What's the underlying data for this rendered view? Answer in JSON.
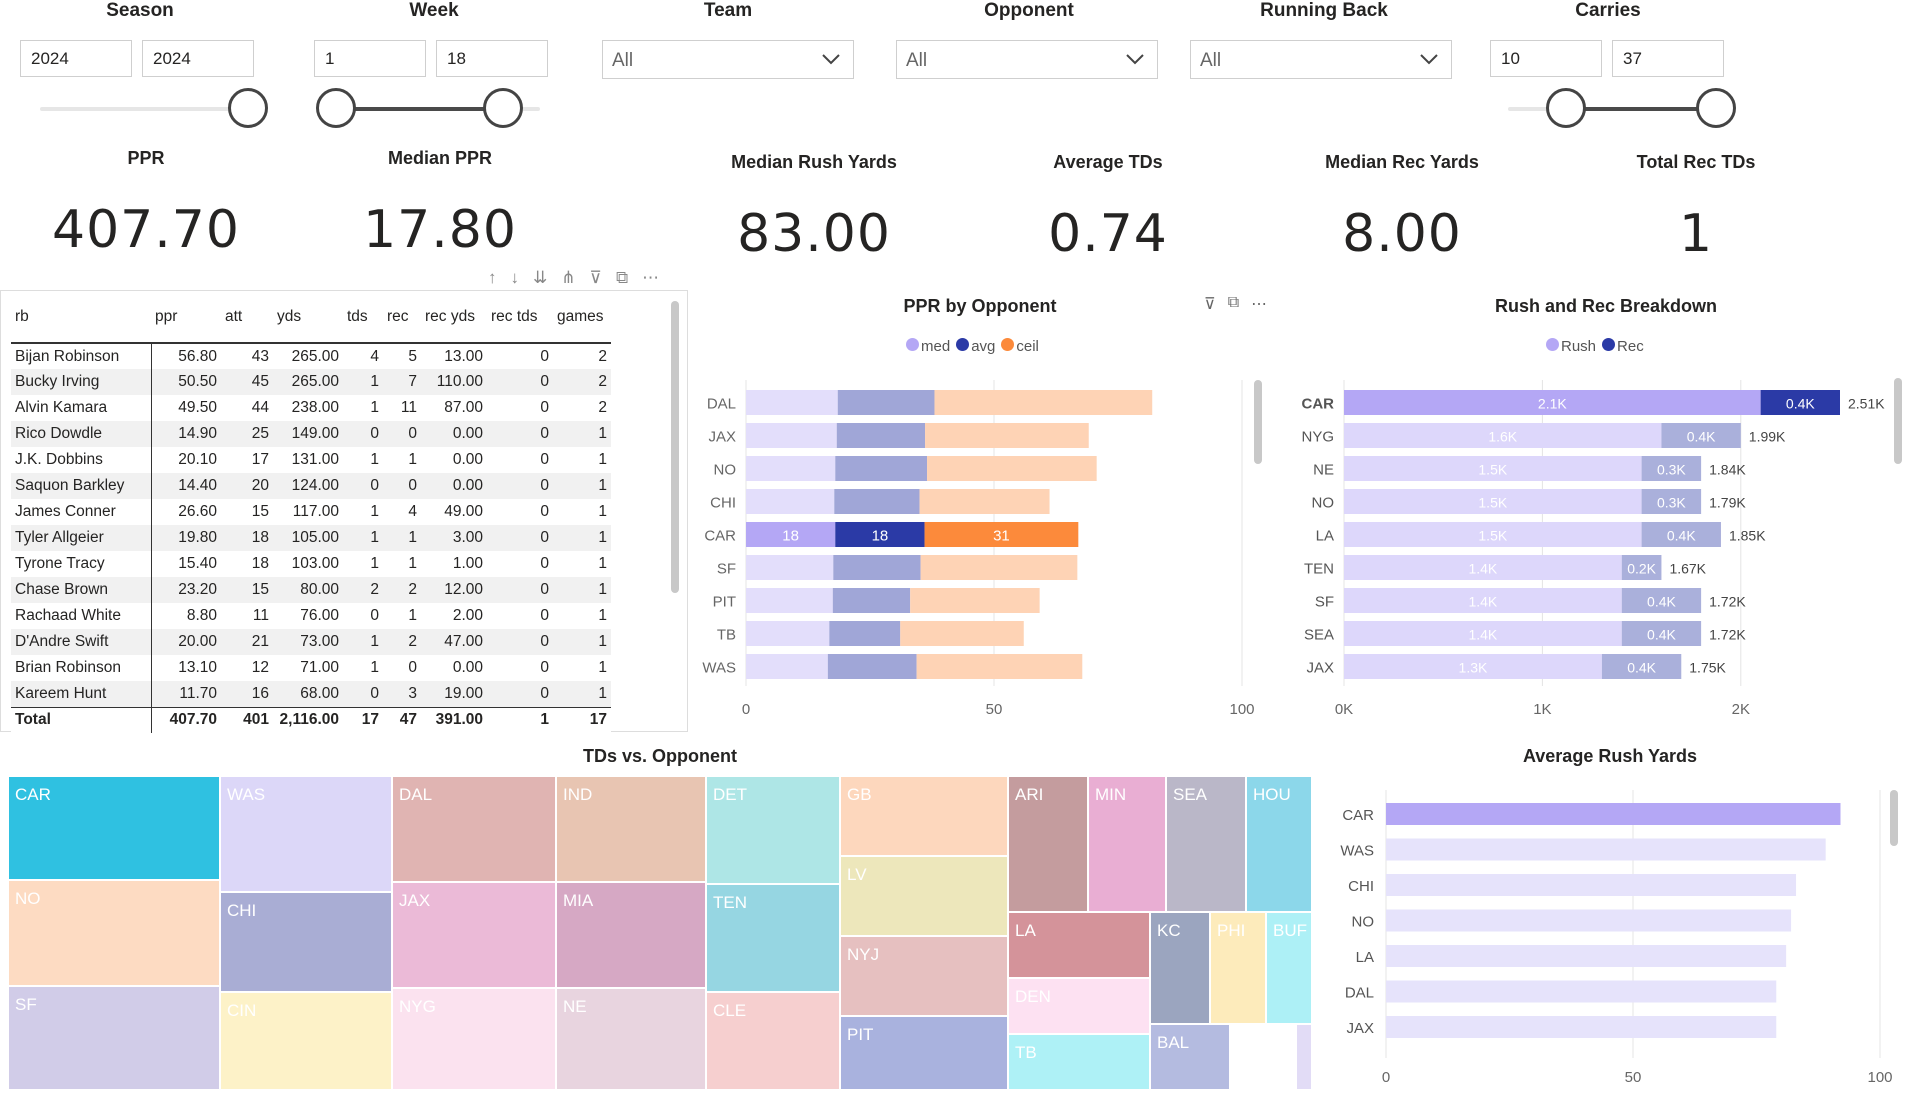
{
  "slicers": {
    "season": {
      "label": "Season",
      "min": "2024",
      "max": "2024"
    },
    "week": {
      "label": "Week",
      "min": "1",
      "max": "18"
    },
    "team": {
      "label": "Team",
      "value": "All"
    },
    "opponent": {
      "label": "Opponent",
      "value": "All"
    },
    "running_back": {
      "label": "Running Back",
      "value": "All"
    },
    "carries": {
      "label": "Carries",
      "min": "10",
      "max": "37"
    }
  },
  "kpis": [
    {
      "title": "PPR",
      "value": "407.70"
    },
    {
      "title": "Median PPR",
      "value": "17.80"
    },
    {
      "title": "Median Rush Yards",
      "value": "83.00"
    },
    {
      "title": "Average TDs",
      "value": "0.74"
    },
    {
      "title": "Median Rec Yards",
      "value": "8.00"
    },
    {
      "title": "Total Rec TDs",
      "value": "1"
    }
  ],
  "table": {
    "columns": [
      "rb",
      "ppr",
      "att",
      "yds",
      "tds",
      "rec",
      "rec yds",
      "rec tds",
      "games"
    ],
    "rows": [
      [
        "Bijan Robinson",
        "56.80",
        "43",
        "265.00",
        "4",
        "5",
        "13.00",
        "0",
        "2"
      ],
      [
        "Bucky Irving",
        "50.50",
        "45",
        "265.00",
        "1",
        "7",
        "110.00",
        "0",
        "2"
      ],
      [
        "Alvin Kamara",
        "49.50",
        "44",
        "238.00",
        "1",
        "11",
        "87.00",
        "0",
        "2"
      ],
      [
        "Rico Dowdle",
        "14.90",
        "25",
        "149.00",
        "0",
        "0",
        "0.00",
        "0",
        "1"
      ],
      [
        "J.K. Dobbins",
        "20.10",
        "17",
        "131.00",
        "1",
        "1",
        "0.00",
        "0",
        "1"
      ],
      [
        "Saquon Barkley",
        "14.40",
        "20",
        "124.00",
        "0",
        "0",
        "0.00",
        "0",
        "1"
      ],
      [
        "James Conner",
        "26.60",
        "15",
        "117.00",
        "1",
        "4",
        "49.00",
        "0",
        "1"
      ],
      [
        "Tyler Allgeier",
        "19.80",
        "18",
        "105.00",
        "1",
        "1",
        "3.00",
        "0",
        "1"
      ],
      [
        "Tyrone Tracy",
        "15.40",
        "18",
        "103.00",
        "1",
        "1",
        "1.00",
        "0",
        "1"
      ],
      [
        "Chase Brown",
        "23.20",
        "15",
        "80.00",
        "2",
        "2",
        "12.00",
        "0",
        "1"
      ],
      [
        "Rachaad White",
        "8.80",
        "11",
        "76.00",
        "0",
        "1",
        "2.00",
        "0",
        "1"
      ],
      [
        "D'Andre Swift",
        "20.00",
        "21",
        "73.00",
        "1",
        "2",
        "47.00",
        "0",
        "1"
      ],
      [
        "Brian Robinson",
        "13.10",
        "12",
        "71.00",
        "1",
        "0",
        "0.00",
        "0",
        "1"
      ],
      [
        "Kareem Hunt",
        "11.70",
        "16",
        "68.00",
        "0",
        "3",
        "19.00",
        "0",
        "1"
      ]
    ],
    "total": [
      "Total",
      "407.70",
      "401",
      "2,116.00",
      "17",
      "47",
      "391.00",
      "1",
      "17"
    ]
  },
  "chart_data": [
    {
      "type": "bar",
      "title": "PPR by Opponent",
      "categories": [
        "DAL",
        "JAX",
        "NO",
        "CHI",
        "CAR",
        "SF",
        "PIT",
        "TB",
        "WAS"
      ],
      "series": [
        {
          "name": "med",
          "values": [
            18.5,
            18.3,
            18.0,
            17.8,
            18,
            17.6,
            17.5,
            16.8,
            16.5
          ],
          "color": "#b4a7f5"
        },
        {
          "name": "avg",
          "values": [
            19.5,
            17.8,
            18.5,
            17.2,
            18,
            17.6,
            15.6,
            14.3,
            17.9
          ],
          "color": "#2b3aa6"
        },
        {
          "name": "ceil",
          "values": [
            43.9,
            33.0,
            34.2,
            26.2,
            31,
            31.6,
            26.1,
            24.9,
            33.4
          ],
          "color": "#fc8a3b"
        }
      ],
      "labels_for": "CAR",
      "highlight_labels": [
        "18",
        "18",
        "31"
      ],
      "xlim": [
        0,
        100
      ],
      "xticks": [
        "0",
        "50",
        "100"
      ]
    },
    {
      "type": "bar",
      "title": "Rush and Rec Breakdown",
      "categories": [
        "CAR",
        "NYG",
        "NE",
        "NO",
        "LA",
        "TEN",
        "SF",
        "SEA",
        "JAX"
      ],
      "series": [
        {
          "name": "Rush",
          "values": [
            2.1,
            1.6,
            1.5,
            1.5,
            1.5,
            1.4,
            1.4,
            1.4,
            1.3
          ],
          "labels": [
            "2.1K",
            "1.6K",
            "1.5K",
            "1.5K",
            "1.5K",
            "1.4K",
            "1.4K",
            "1.4K",
            "1.3K"
          ],
          "color": "#b4a7f5"
        },
        {
          "name": "Rec",
          "values": [
            0.4,
            0.4,
            0.3,
            0.3,
            0.4,
            0.2,
            0.4,
            0.4,
            0.4
          ],
          "labels": [
            "0.4K",
            "0.4K",
            "0.3K",
            "0.3K",
            "0.4K",
            "0.2K",
            "0.4K",
            "0.4K",
            "0.4K"
          ],
          "color": "#2b3aa6"
        }
      ],
      "totals": [
        "2.51K",
        "1.99K",
        "1.84K",
        "1.79K",
        "1.85K",
        "1.67K",
        "1.72K",
        "1.72K",
        "1.75K"
      ],
      "xlim": [
        0,
        2.5
      ],
      "xticks": [
        "0K",
        "1K",
        "2K"
      ]
    },
    {
      "type": "treemap",
      "title": "TDs vs. Opponent",
      "cells": [
        "CAR",
        "WAS",
        "NO",
        "SF",
        "CHI",
        "CIN",
        "DAL",
        "JAX",
        "NYG",
        "IND",
        "MIA",
        "NE",
        "DET",
        "TEN",
        "CLE",
        "GB",
        "LV",
        "NYJ",
        "PIT",
        "ARI",
        "MIN",
        "SEA",
        "HOU",
        "LA",
        "KC",
        "PHI",
        "BUF",
        "DEN",
        "TB",
        "BAL"
      ]
    },
    {
      "type": "bar",
      "title": "Average Rush Yards",
      "categories": [
        "CAR",
        "WAS",
        "CHI",
        "NO",
        "LA",
        "DAL",
        "JAX"
      ],
      "values": [
        92,
        89,
        83,
        82,
        81,
        79,
        79
      ],
      "xlim": [
        0,
        100
      ],
      "xticks": [
        "0",
        "50",
        "100"
      ]
    }
  ],
  "colors": {
    "accent": "#2b3aa6",
    "light": "#b4a7f5",
    "orange": "#fc8a3b",
    "highlight": "#2fc1e1"
  }
}
